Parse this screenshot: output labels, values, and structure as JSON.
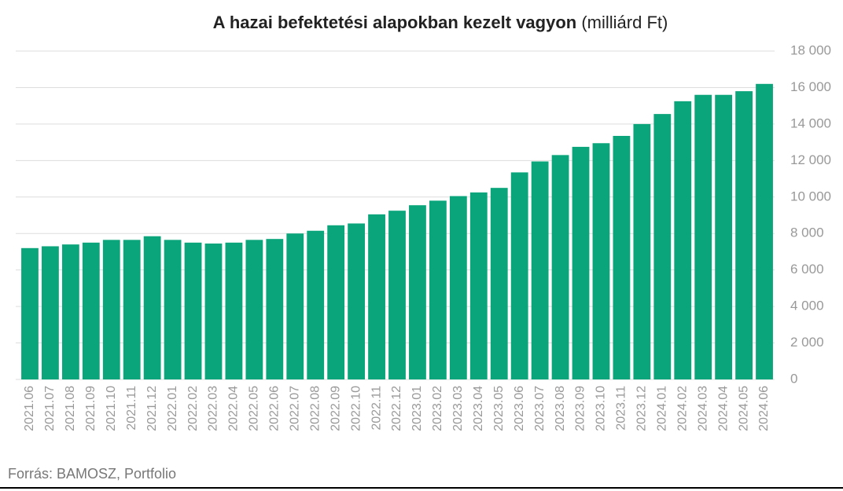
{
  "chart_data": {
    "type": "bar",
    "title": "A hazai befektetési alapokban kezelt vagyon",
    "title_unit": "(milliárd Ft)",
    "source": "Forrás: BAMOSZ, Portfolio",
    "categories": [
      "2021.06",
      "2021.07",
      "2021.08",
      "2021.09",
      "2021.10",
      "2021.11",
      "2021.12",
      "2022.01",
      "2022.02",
      "2022.03",
      "2022.04",
      "2022.05",
      "2022.06",
      "2022.07",
      "2022.08",
      "2022.09",
      "2022.10",
      "2022.11",
      "2022.12",
      "2023.01",
      "2023.02",
      "2023.03",
      "2023.04",
      "2023.05",
      "2023.06",
      "2023.07",
      "2023.08",
      "2023.09",
      "2023.10",
      "2023.11",
      "2023.12",
      "2024.01",
      "2024.02",
      "2024.03",
      "2024.04",
      "2024.05",
      "2024.06"
    ],
    "values": [
      7200,
      7300,
      7400,
      7500,
      7650,
      7650,
      7850,
      7650,
      7500,
      7450,
      7500,
      7650,
      7700,
      8000,
      8150,
      8450,
      8550,
      9050,
      9250,
      9550,
      9800,
      10050,
      10250,
      10500,
      11350,
      11950,
      12300,
      12750,
      12950,
      13350,
      14000,
      14550,
      15250,
      15600,
      15600,
      15800,
      16200
    ],
    "color": "#0aa57a",
    "ylim": [
      0,
      18000
    ],
    "yticks": [
      0,
      {
        "value": 2000,
        "label": "2 000"
      },
      {
        "value": 4000,
        "label": "4 000"
      },
      {
        "value": 6000,
        "label": "6 000"
      },
      {
        "value": 8000,
        "label": "8 000"
      },
      {
        "value": 10000,
        "label": "10 000"
      },
      {
        "value": 12000,
        "label": "12 000"
      },
      {
        "value": 14000,
        "label": "14 000"
      },
      {
        "value": 16000,
        "label": "16 000"
      },
      {
        "value": 18000,
        "label": "18 000"
      }
    ],
    "grid": true
  }
}
